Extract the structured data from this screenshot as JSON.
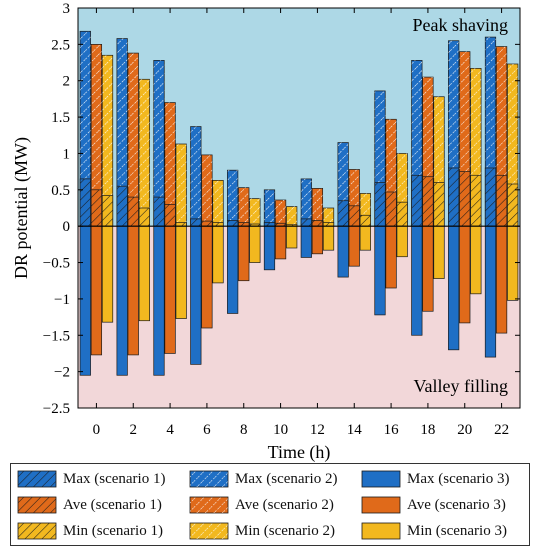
{
  "chart_data": {
    "type": "bar",
    "title": "",
    "xlabel": "Time (h)",
    "ylabel": "DR potential (MW)",
    "ylim": [
      -2.5,
      3
    ],
    "yticks": [
      -2.5,
      -2,
      -1.5,
      -1,
      -0.5,
      0,
      0.5,
      1,
      1.5,
      2,
      2.5,
      3
    ],
    "ytick_labels": [
      "−2.5",
      "−2",
      "−1.5",
      "−1",
      "−0.5",
      "0",
      "0.5",
      "1",
      "1.5",
      "2",
      "2.5",
      "3"
    ],
    "categories": [
      "0",
      "2",
      "4",
      "6",
      "8",
      "10",
      "12",
      "14",
      "16",
      "18",
      "20",
      "22"
    ],
    "annotations": {
      "upper": "Peak shaving",
      "lower": "Valley filling"
    },
    "region_colors": {
      "upper": "#add8e6",
      "lower": "#f2d7d9"
    },
    "legend": [
      [
        "Max (scenario 1)",
        "Max (scenario 2)",
        "Max (scenario 3)"
      ],
      [
        "Ave (scenario 1)",
        "Ave (scenario 2)",
        "Ave (scenario 3)"
      ],
      [
        "Min (scenario 1)",
        "Min (scenario 2)",
        "Min (scenario 3)"
      ]
    ],
    "colors": {
      "max": "#1f6fc5",
      "ave": "#e06a1a",
      "min": "#f2b81f"
    },
    "scenario_patterns": {
      "scenario 1": "hatch",
      "scenario 2": "dashed-hatch",
      "scenario 3": "solid"
    },
    "series": [
      {
        "name": "Max (scenario 1)",
        "values": [
          0.65,
          0.55,
          0.4,
          0.1,
          0.08,
          0.05,
          0.1,
          0.35,
          0.6,
          0.7,
          0.8,
          0.8
        ]
      },
      {
        "name": "Max (scenario 2)",
        "values": [
          2.68,
          2.58,
          2.28,
          1.37,
          0.77,
          0.5,
          0.65,
          1.15,
          1.86,
          2.28,
          2.55,
          2.6
        ]
      },
      {
        "name": "Max (scenario 3)",
        "values": [
          -2.05,
          -2.05,
          -2.05,
          -1.9,
          -1.2,
          -0.6,
          -0.43,
          -0.7,
          -1.22,
          -1.5,
          -1.7,
          -1.8
        ]
      },
      {
        "name": "Ave (scenario 1)",
        "values": [
          0.5,
          0.4,
          0.3,
          0.07,
          0.05,
          0.04,
          0.08,
          0.28,
          0.47,
          0.68,
          0.75,
          0.7
        ]
      },
      {
        "name": "Ave (scenario 2)",
        "values": [
          2.5,
          2.38,
          1.7,
          0.98,
          0.53,
          0.36,
          0.52,
          0.78,
          1.47,
          2.05,
          2.4,
          2.47
        ]
      },
      {
        "name": "Ave (scenario 3)",
        "values": [
          -1.77,
          -1.77,
          -1.75,
          -1.4,
          -0.75,
          -0.45,
          -0.38,
          -0.55,
          -0.85,
          -1.17,
          -1.33,
          -1.47
        ]
      },
      {
        "name": "Min (scenario 1)",
        "values": [
          0.42,
          0.25,
          0.05,
          0.05,
          0.03,
          0.02,
          0.05,
          0.15,
          0.33,
          0.6,
          0.7,
          0.58
        ]
      },
      {
        "name": "Min (scenario 2)",
        "values": [
          2.35,
          2.02,
          1.13,
          0.63,
          0.38,
          0.27,
          0.25,
          0.45,
          1.0,
          1.78,
          2.17,
          2.23
        ]
      },
      {
        "name": "Min (scenario 3)",
        "values": [
          -1.32,
          -1.3,
          -1.27,
          -0.78,
          -0.5,
          -0.3,
          -0.33,
          -0.33,
          -0.42,
          -0.72,
          -0.93,
          -1.02
        ]
      }
    ]
  }
}
